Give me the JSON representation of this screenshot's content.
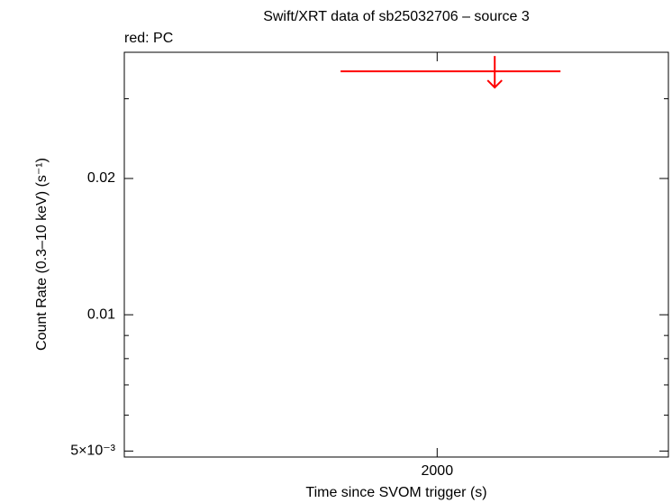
{
  "chart_data": {
    "type": "upper-limit",
    "title": "Swift/XRT data of sb25032706 – source 3",
    "subtitle": "red: PC",
    "x_label": "Time since SVOM trigger (s)",
    "y_label": "Count Rate (0.3–10 keV) (s⁻¹)",
    "series": [
      {
        "name": "PC",
        "color": "#ff0000",
        "x": [
          2127
        ],
        "xerr_minus": [
          340
        ],
        "xerr_plus": [
          145
        ],
        "values": [
          0.0345
        ],
        "upper_limit": true
      }
    ],
    "xlim": [
      1310,
      2510
    ],
    "xticks": [
      2000
    ],
    "ylim": [
      0.00485,
      0.038
    ],
    "ylog": true,
    "yticks": [
      {
        "value": 0.005,
        "label": "5×10⁻³"
      },
      0.01,
      0.02
    ],
    "yminor": [
      0.006,
      0.007,
      0.008,
      0.009,
      0.03
    ]
  }
}
